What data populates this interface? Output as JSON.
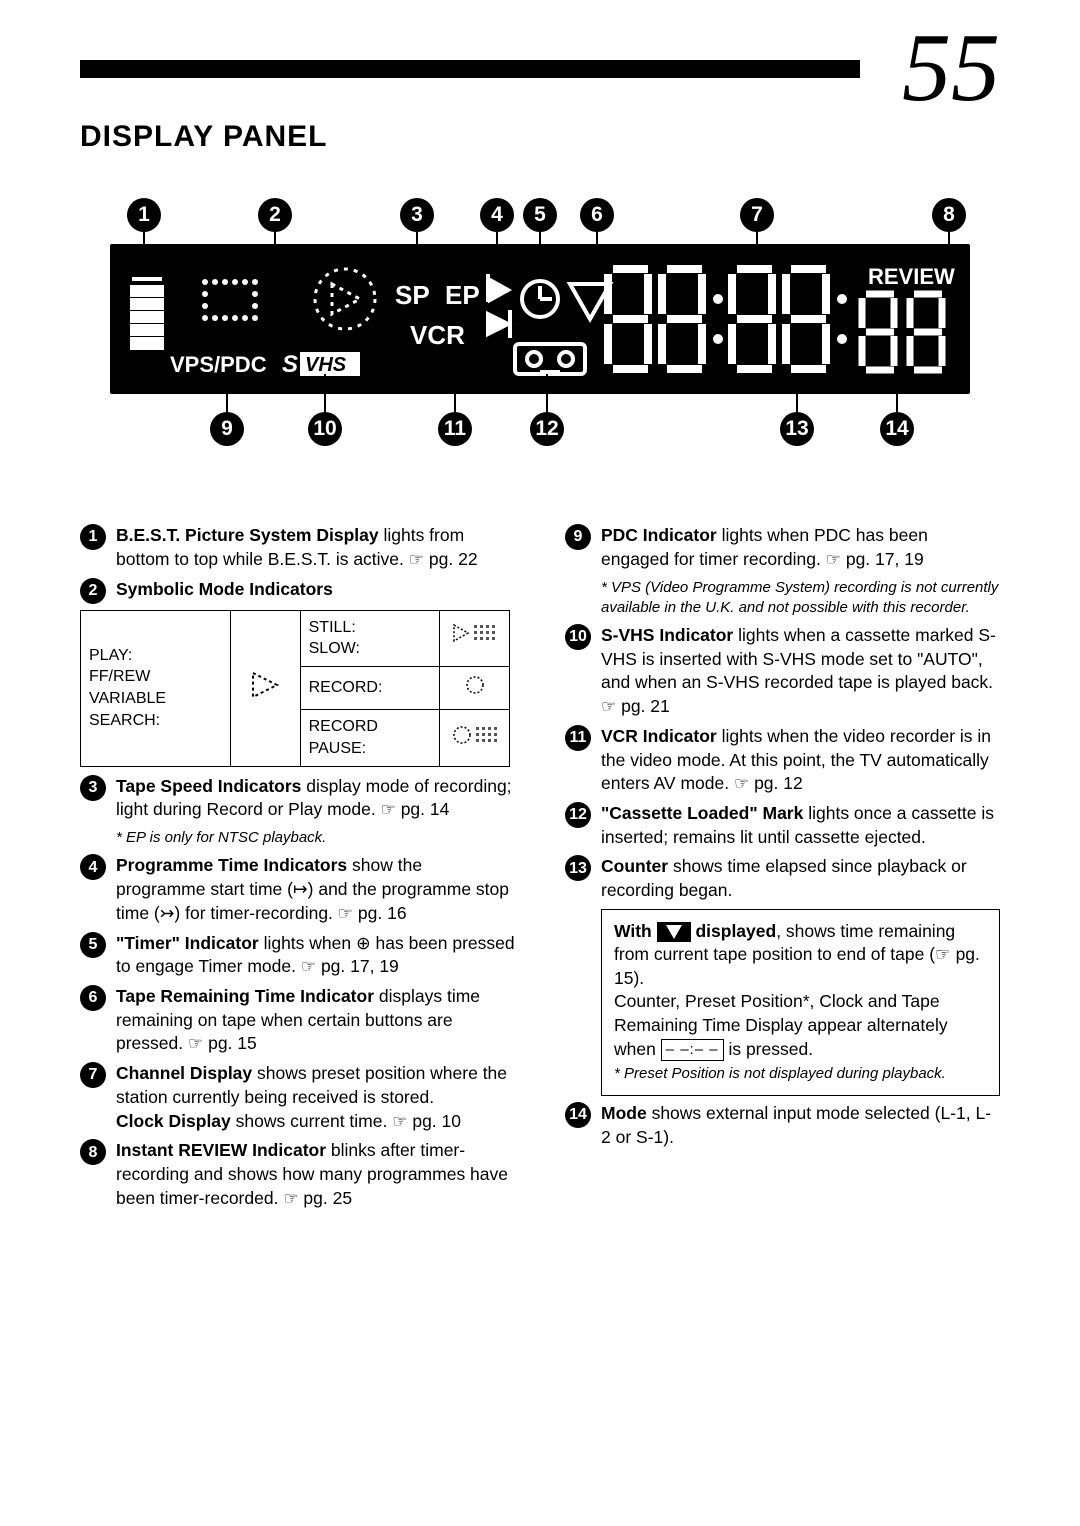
{
  "page_number": "55",
  "title": "DISPLAY PANEL",
  "panel": {
    "labels": {
      "sp": "SP",
      "ep": "EP",
      "vcr": "VCR",
      "vps_pdc": "VPS/PDC",
      "svhs": "S VHS",
      "review": "REVIEW"
    }
  },
  "callouts_top": [
    "1",
    "2",
    "3",
    "4",
    "5",
    "6",
    "7",
    "8"
  ],
  "callouts_bottom": [
    "9",
    "10",
    "11",
    "12",
    "13",
    "14"
  ],
  "table": {
    "left": "PLAY:\nFF/REW VARIABLE\nSEARCH:",
    "r1": "STILL:\nSLOW:",
    "r2": "RECORD:",
    "r3": "RECORD PAUSE:"
  },
  "left_items": [
    {
      "num": "1",
      "html": "<b>B.E.S.T. Picture System Display</b> lights from bottom to top while B.E.S.T. is active. <span class='hand-icon'>☞</span> pg. 22"
    },
    {
      "num": "2",
      "html": "<b>Symbolic Mode Indicators</b>"
    },
    {
      "num": "3",
      "html": "<b>Tape Speed Indicators</b> display mode of recording; light during Record or Play mode. <span class='hand-icon'>☞</span> pg. 14",
      "foot": "* EP is only for NTSC playback."
    },
    {
      "num": "4",
      "html": "<b>Programme Time Indicators</b> show the programme start time (↦) and the programme stop time (↣) for timer-recording. <span class='hand-icon'>☞</span> pg. 16"
    },
    {
      "num": "5",
      "html": "<b>\"Timer\" Indicator</b> lights when ⊕ has been pressed to engage Timer mode. <span class='hand-icon'>☞</span> pg. 17, 19"
    },
    {
      "num": "6",
      "html": "<b>Tape Remaining Time Indicator</b> displays time remaining on tape when certain buttons are pressed. <span class='hand-icon'>☞</span> pg. 15"
    },
    {
      "num": "7",
      "html": "<b>Channel Display</b> shows preset position where the station currently being received is stored.<br><b>Clock Display</b> shows current time. <span class='hand-icon'>☞</span> pg. 10"
    },
    {
      "num": "8",
      "html": "<b>Instant REVIEW Indicator</b> blinks after timer-recording and shows how many programmes have been timer-recorded. <span class='hand-icon'>☞</span> pg. 25"
    }
  ],
  "right_items": [
    {
      "num": "9",
      "html": "<b>PDC Indicator</b> lights when PDC has been engaged for timer recording. <span class='hand-icon'>☞</span> pg. 17, 19",
      "foot": "* VPS (Video Programme System) recording is not currently available in the U.K. and not possible with this recorder."
    },
    {
      "num": "10",
      "html": "<b>S-VHS Indicator</b> lights when a cassette marked S-VHS is inserted with S-VHS mode set to \"AUTO\", and when an S-VHS recorded tape is played back. <span class='hand-icon'>☞</span> pg. 21"
    },
    {
      "num": "11",
      "html": "<b>VCR Indicator</b> lights when the video recorder is in the video mode. At this point, the TV automatically enters AV mode. <span class='hand-icon'>☞</span> pg. 12"
    },
    {
      "num": "12",
      "html": "<b>\"Cassette Loaded\" Mark</b> lights once a cassette is inserted; remains lit until cassette ejected."
    },
    {
      "num": "13",
      "html": "<b>Counter</b> shows time elapsed since playback or recording began."
    },
    {
      "num": "14",
      "html": "<b>Mode</b> shows external input mode selected (L-1, L-2 or S-1)."
    }
  ],
  "box": {
    "line1_pre": "With ",
    "line1_post": " displayed",
    "line1_rest": ", shows time remaining from current tape position to end of tape (☞ pg. 15).",
    "line2": "Counter, Preset Position*, Clock and Tape Remaining Time Display appear alternately when ",
    "line2_key": "– –:– –",
    "line2_end": " is pressed.",
    "foot": "* Preset Position is not displayed during playback."
  }
}
